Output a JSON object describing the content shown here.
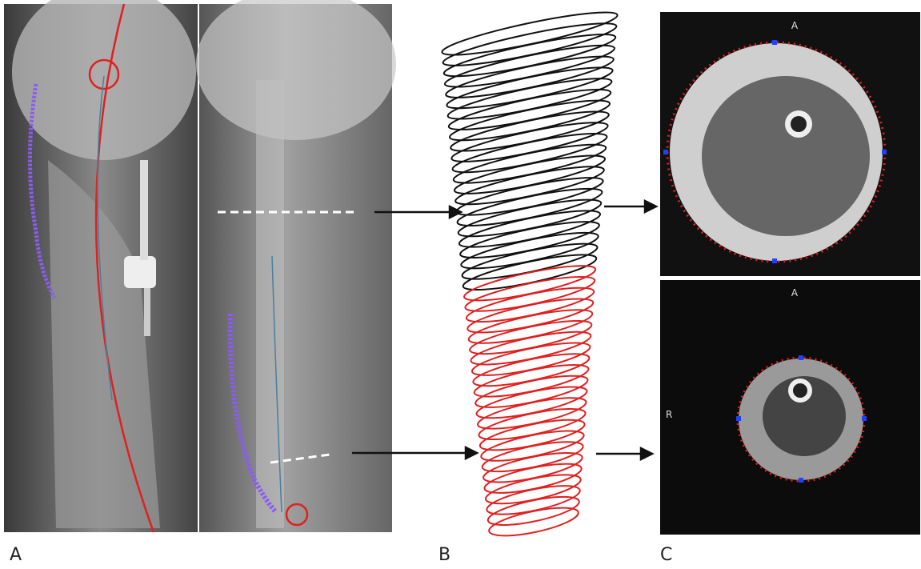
{
  "panel_labels": [
    "A",
    "B",
    "C"
  ],
  "mri_top": {
    "orientation": "A"
  },
  "mri_bottom": {
    "orientation_top": "A",
    "orientation_left": "R"
  }
}
